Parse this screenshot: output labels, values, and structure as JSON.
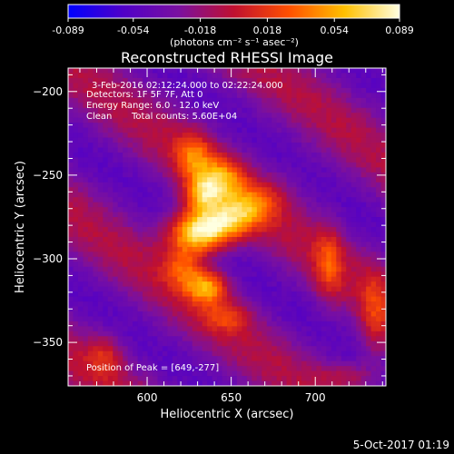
{
  "chart_data": {
    "type": "heatmap",
    "title": "Reconstructed RHESSI Image",
    "xlabel": "Heliocentric X (arcsec)",
    "ylabel": "Heliocentric Y (arcsec)",
    "xlim": [
      553,
      742
    ],
    "ylim": [
      -376,
      -186
    ],
    "x_ticks": [
      600,
      650,
      700
    ],
    "y_ticks": [
      -200,
      -250,
      -300,
      -350
    ],
    "colorbar": {
      "min": -0.089,
      "max": 0.089,
      "ticks": [
        "-0.089",
        "-0.054",
        "-0.018",
        "0.018",
        "0.054",
        "0.089"
      ],
      "unit": "(photons cm⁻² s⁻¹ asec⁻²)",
      "colormap": [
        "#0000ff",
        "#5000c8",
        "#7a10a0",
        "#c01030",
        "#ff5000",
        "#ffc000",
        "#ffffe0"
      ]
    },
    "annotations": {
      "time_range": "3-Feb-2016 02:12:24.000 to 02:22:24.000",
      "detectors": "Detectors: 1F 5F 7F, Att 0",
      "energy": "Energy Range: 6.0 - 12.0 keV",
      "method": "Clean",
      "counts": "Total counts: 5.60E+04",
      "peak": "Position of Peak = [649,-277]"
    },
    "peak": {
      "x": 649,
      "y": -277
    },
    "sources": [
      {
        "x": 649,
        "y": -277,
        "peak": 0.089,
        "sx": 20,
        "sy": 9,
        "angle": 30
      },
      {
        "x": 628,
        "y": -283,
        "peak": 0.085,
        "sx": 12,
        "sy": 9,
        "angle": 0
      },
      {
        "x": 633,
        "y": -262,
        "peak": 0.07,
        "sx": 8,
        "sy": 8,
        "angle": 0
      },
      {
        "x": 645,
        "y": -252,
        "peak": 0.06,
        "sx": 10,
        "sy": 9,
        "angle": 0
      },
      {
        "x": 628,
        "y": -238,
        "peak": 0.05,
        "sx": 8,
        "sy": 10,
        "angle": 0
      },
      {
        "x": 636,
        "y": -317,
        "peak": 0.075,
        "sx": 9,
        "sy": 7,
        "angle": 0
      },
      {
        "x": 622,
        "y": -306,
        "peak": 0.045,
        "sx": 8,
        "sy": 8,
        "angle": 0
      },
      {
        "x": 648,
        "y": -335,
        "peak": 0.035,
        "sx": 10,
        "sy": 6,
        "angle": 0
      },
      {
        "x": 708,
        "y": -303,
        "peak": 0.04,
        "sx": 6,
        "sy": 16,
        "angle": 0
      },
      {
        "x": 575,
        "y": -358,
        "peak": 0.035,
        "sx": 8,
        "sy": 9,
        "angle": 0
      },
      {
        "x": 735,
        "y": -335,
        "peak": 0.035,
        "sx": 6,
        "sy": 20,
        "angle": 0
      },
      {
        "x": 720,
        "y": -370,
        "peak": 0.025,
        "sx": 12,
        "sy": 6,
        "angle": 0
      }
    ]
  },
  "footer": {
    "timestamp": "5-Oct-2017 01:19"
  }
}
